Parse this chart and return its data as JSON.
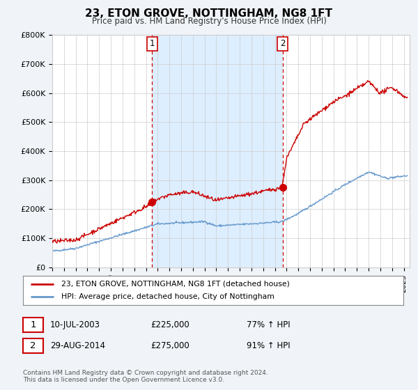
{
  "title": "23, ETON GROVE, NOTTINGHAM, NG8 1FT",
  "subtitle": "Price paid vs. HM Land Registry's House Price Index (HPI)",
  "ylim": [
    0,
    800000
  ],
  "yticks": [
    0,
    100000,
    200000,
    300000,
    400000,
    500000,
    600000,
    700000,
    800000
  ],
  "ytick_labels": [
    "£0",
    "£100K",
    "£200K",
    "£300K",
    "£400K",
    "£500K",
    "£600K",
    "£700K",
    "£800K"
  ],
  "xlim_start": 1995.0,
  "xlim_end": 2025.5,
  "legend_line1": "23, ETON GROVE, NOTTINGHAM, NG8 1FT (detached house)",
  "legend_line2": "HPI: Average price, detached house, City of Nottingham",
  "transaction1_x": 2003.53,
  "transaction1_y": 225000,
  "transaction2_x": 2014.66,
  "transaction2_y": 275000,
  "transaction1_date": "10-JUL-2003",
  "transaction1_price": "£225,000",
  "transaction1_hpi": "77% ↑ HPI",
  "transaction2_date": "29-AUG-2014",
  "transaction2_price": "£275,000",
  "transaction2_hpi": "91% ↑ HPI",
  "red_color": "#cc0000",
  "blue_color": "#6699cc",
  "shade_color": "#ddeeff",
  "footer_text": "Contains HM Land Registry data © Crown copyright and database right 2024.\nThis data is licensed under the Open Government Licence v3.0.",
  "bg_color": "#f0f4f8",
  "plot_bg": "#ffffff",
  "grid_color": "#cccccc"
}
